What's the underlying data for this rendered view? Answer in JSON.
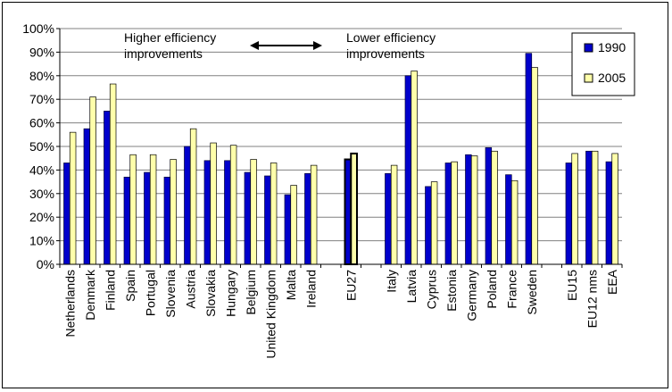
{
  "chart_data": {
    "type": "bar",
    "categories": [
      "Netherlands",
      "Denmark",
      "Finland",
      "Spain",
      "Portugal",
      "Slovenia",
      "Austria",
      "Slovakia",
      "Hungary",
      "Belgium",
      "United Kingdom",
      "Malta",
      "Ireland",
      "EU27",
      "Italy",
      "Latvia",
      "Cyprus",
      "Estonia",
      "Germany",
      "Poland",
      "France",
      "Sweden",
      "EU15",
      "EU12 nms",
      "EEA"
    ],
    "series": [
      {
        "name": "1990",
        "color": "#0000cc",
        "values": [
          43,
          57.5,
          65,
          37,
          39,
          37,
          50,
          44,
          44,
          39,
          37.5,
          29.5,
          38.5,
          44.5,
          38.5,
          80,
          33,
          43,
          46.5,
          49.5,
          38,
          89.5,
          43,
          48,
          43.5
        ]
      },
      {
        "name": "2005",
        "color": "#ffffaa",
        "values": [
          56,
          71,
          76.5,
          46.5,
          46.5,
          44.5,
          57.5,
          51.5,
          50.5,
          44.5,
          43,
          33.5,
          42,
          47,
          42,
          82,
          35,
          43.5,
          46,
          48,
          35.5,
          83.5,
          47,
          48,
          47
        ]
      }
    ],
    "highlight_category": "EU27",
    "ylim": [
      0,
      100
    ],
    "yticks": [
      "0%",
      "10%",
      "20%",
      "30%",
      "40%",
      "50%",
      "60%",
      "70%",
      "80%",
      "90%",
      "100%"
    ],
    "grid": true,
    "legend_position": "top-right",
    "annotations": {
      "left": [
        "Higher efficiency",
        "improvements"
      ],
      "right": [
        "Lower efficiency",
        "improvements"
      ],
      "arrow": "double-headed"
    }
  }
}
